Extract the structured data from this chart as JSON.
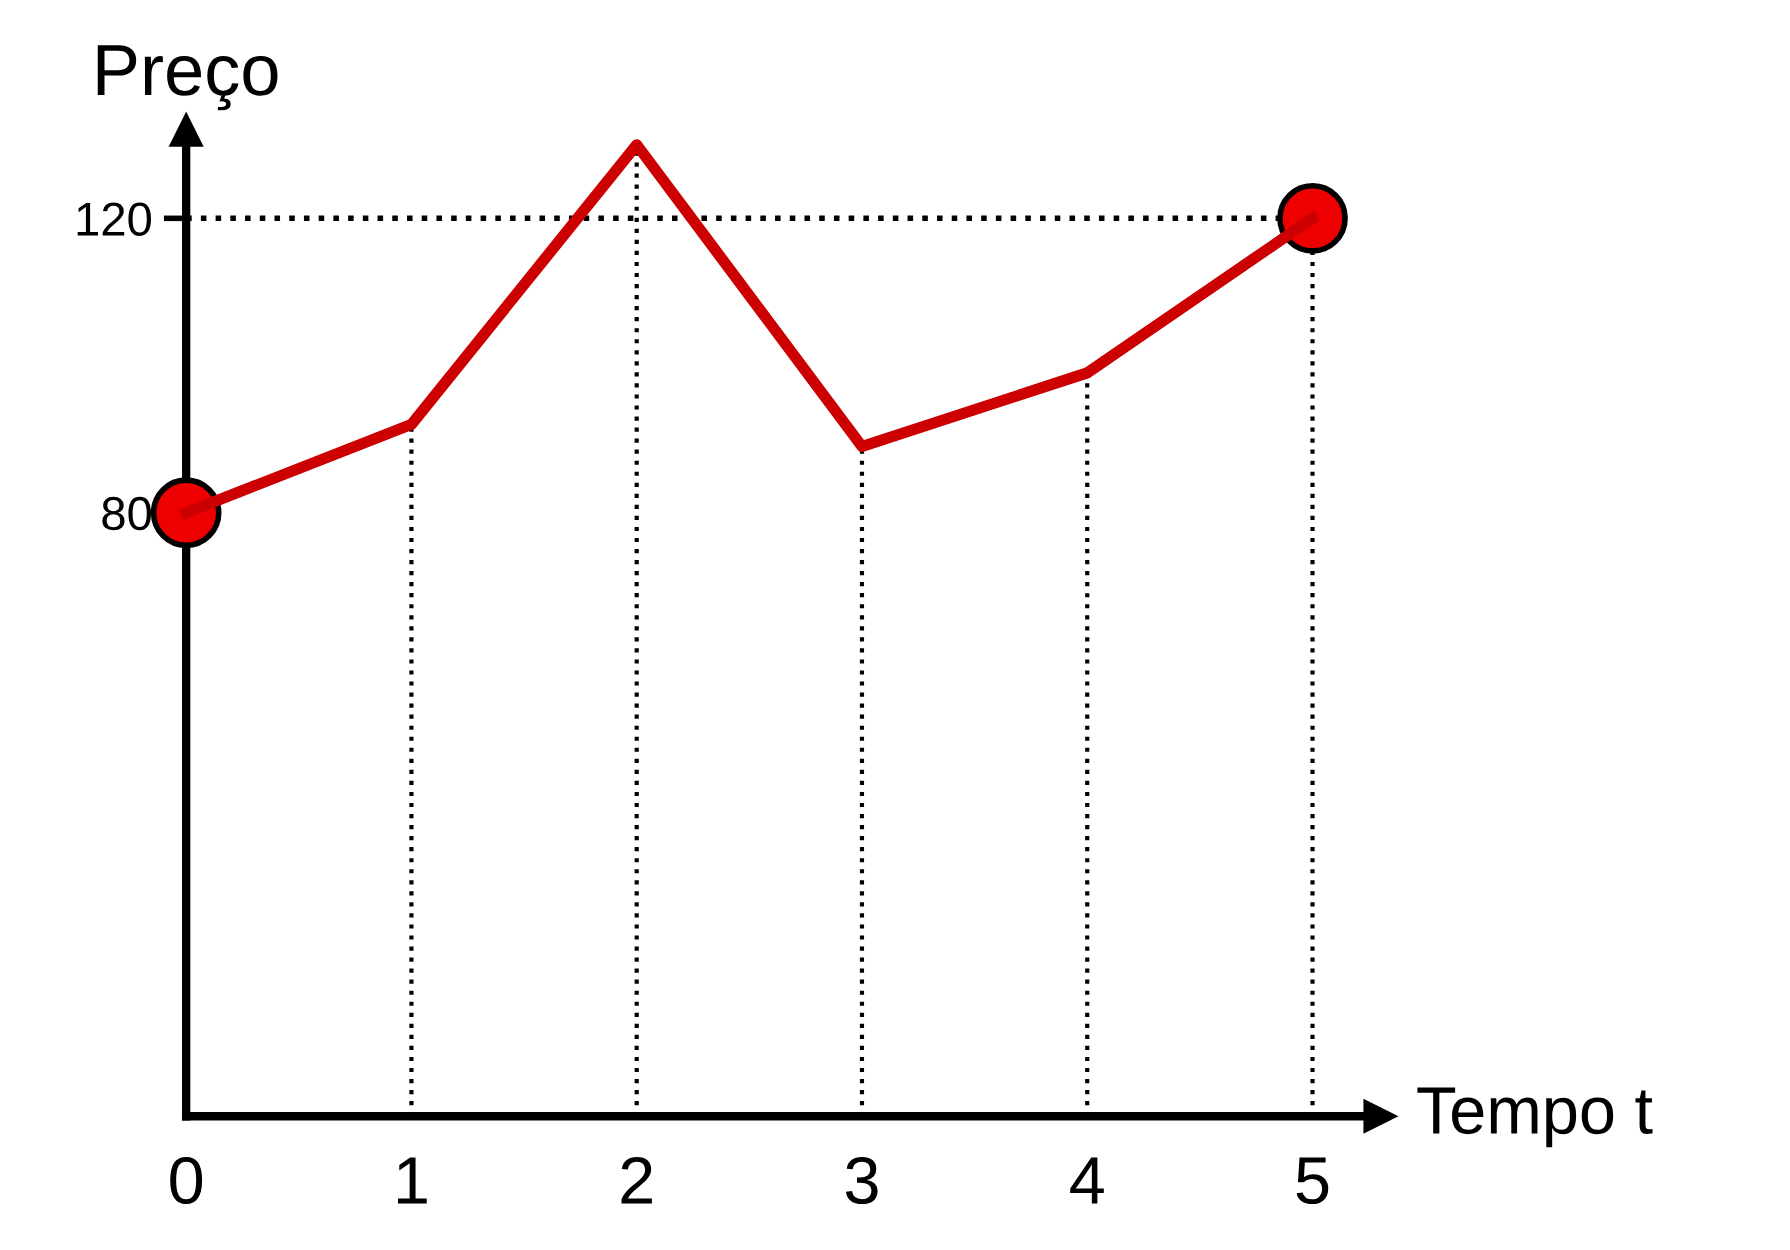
{
  "chart_data": {
    "type": "line",
    "xlabel": "Tempo t",
    "ylabel": "Preço",
    "series": [
      {
        "color": "#cc0000",
        "x": [
          0,
          1,
          2,
          3,
          4,
          5
        ],
        "values": [
          80,
          92,
          130,
          89,
          99,
          120
        ],
        "marker": "none"
      },
      {
        "type": "scatter",
        "color": "#ee0000",
        "x": [
          0,
          5
        ],
        "values": [
          80,
          120
        ],
        "marker": "circle"
      }
    ],
    "xlim": [
      0,
      5.3
    ],
    "ylim": [
      -2,
      132
    ],
    "xticks": [
      0,
      1,
      2,
      3,
      4,
      5
    ],
    "yticks": [
      80,
      120
    ],
    "ref_lines": [
      {
        "axis": "x",
        "value": 1,
        "line_style": "dotted",
        "color": "#000000"
      },
      {
        "axis": "x",
        "value": 2,
        "line_style": "dotted",
        "color": "#000000"
      },
      {
        "axis": "x",
        "value": 3,
        "line_style": "dotted",
        "color": "#000000"
      },
      {
        "axis": "x",
        "value": 4,
        "line_style": "dotted",
        "color": "#000000"
      },
      {
        "axis": "x",
        "value": 5,
        "line_style": "dotted",
        "color": "#000000"
      },
      {
        "axis": "y",
        "value": 120,
        "line_style": "dotted",
        "color": "#000000"
      }
    ],
    "grid": false,
    "legend": false
  }
}
